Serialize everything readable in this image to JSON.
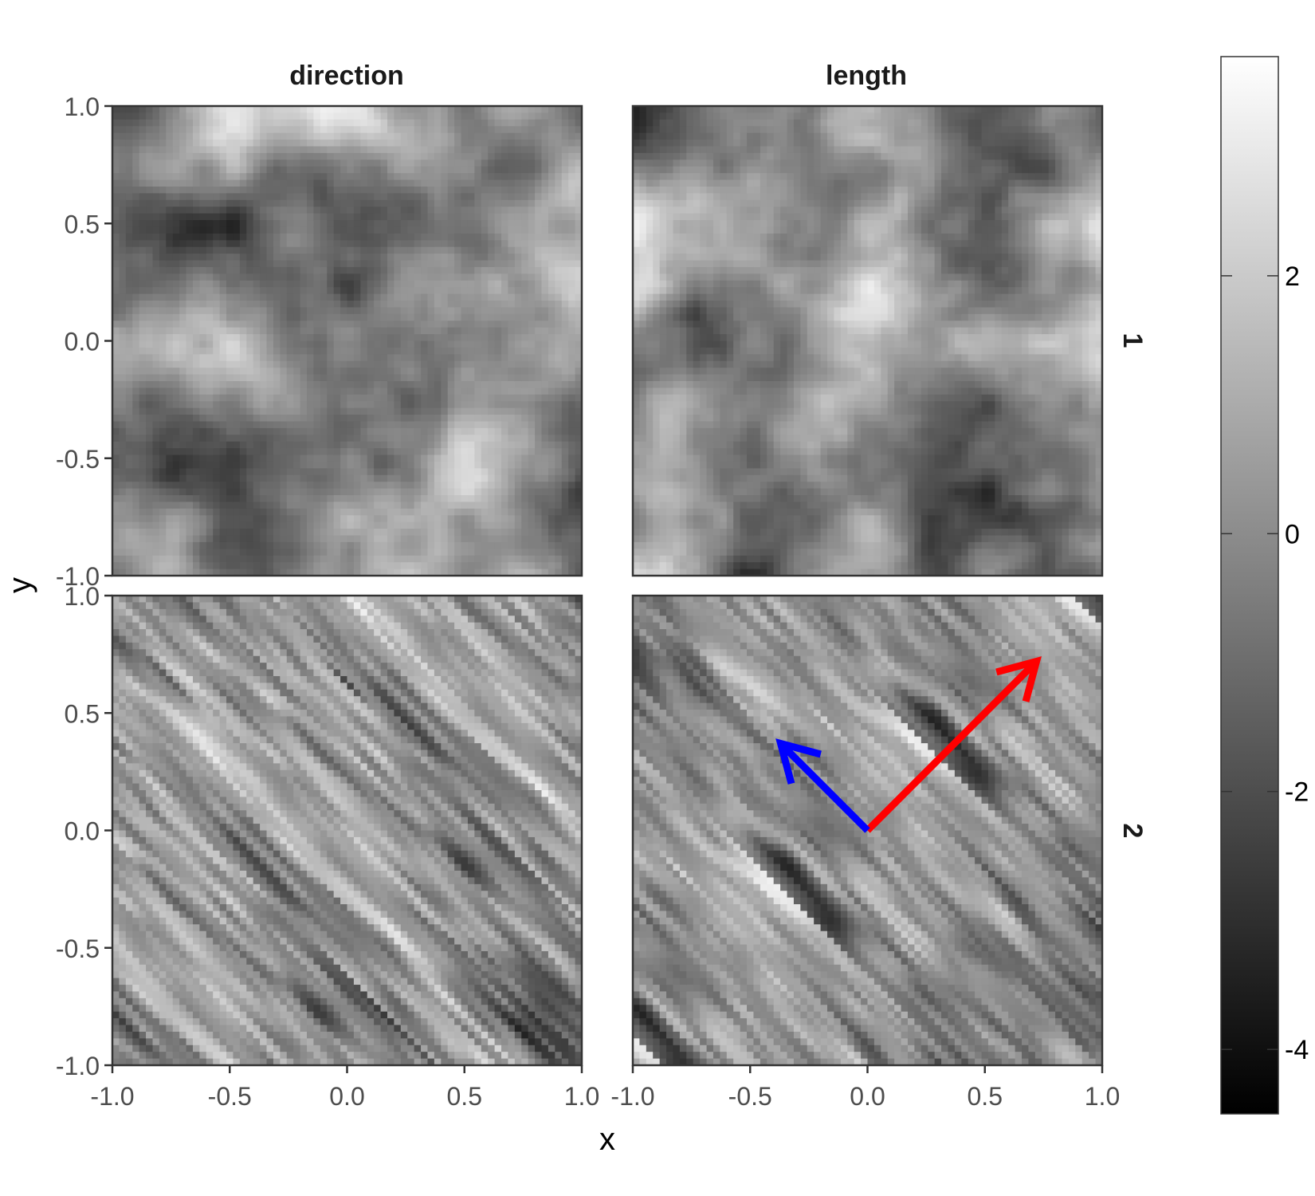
{
  "chart_data": {
    "type": "heatmap",
    "title": "",
    "xlabel": "x",
    "ylabel": "y",
    "xlim": [
      -1.0,
      1.0
    ],
    "ylim": [
      -1.0,
      1.0
    ],
    "x_ticks": [
      "-1.0",
      "-0.5",
      "0.0",
      "0.5",
      "1.0"
    ],
    "y_ticks": [
      "-1.0",
      "-0.5",
      "0.0",
      "0.5",
      "1.0"
    ],
    "x_tick_values": [
      -1.0,
      -0.5,
      0.0,
      0.5,
      1.0
    ],
    "y_tick_values": [
      -1.0,
      -0.5,
      0.0,
      0.5,
      1.0
    ],
    "facet_columns": [
      "direction",
      "length"
    ],
    "facet_rows": [
      "1",
      "2"
    ],
    "colorbar": {
      "range": [
        -4.5,
        3.7
      ],
      "tick_values": [
        2,
        0,
        -2,
        -4
      ],
      "tick_labels": [
        "2",
        "0",
        "-2",
        "-4"
      ],
      "colormap": "grayscale",
      "low_color": "#000000",
      "high_color": "#ffffff"
    },
    "panels": [
      {
        "column": "direction",
        "row": "1",
        "texture": "smooth",
        "seed": 11
      },
      {
        "column": "length",
        "row": "1",
        "texture": "smooth",
        "seed": 29
      },
      {
        "column": "direction",
        "row": "2",
        "texture": "anisotropic",
        "seed": 47
      },
      {
        "column": "length",
        "row": "2",
        "texture": "anisotropic",
        "seed": 83
      }
    ],
    "arrows": [
      {
        "panel": "length-2",
        "color": "#ff0000",
        "from": [
          0.0,
          0.0
        ],
        "to": [
          0.72,
          0.72
        ]
      },
      {
        "panel": "length-2",
        "color": "#0000ff",
        "from": [
          0.0,
          0.0
        ],
        "to": [
          -0.37,
          0.37
        ]
      }
    ]
  }
}
